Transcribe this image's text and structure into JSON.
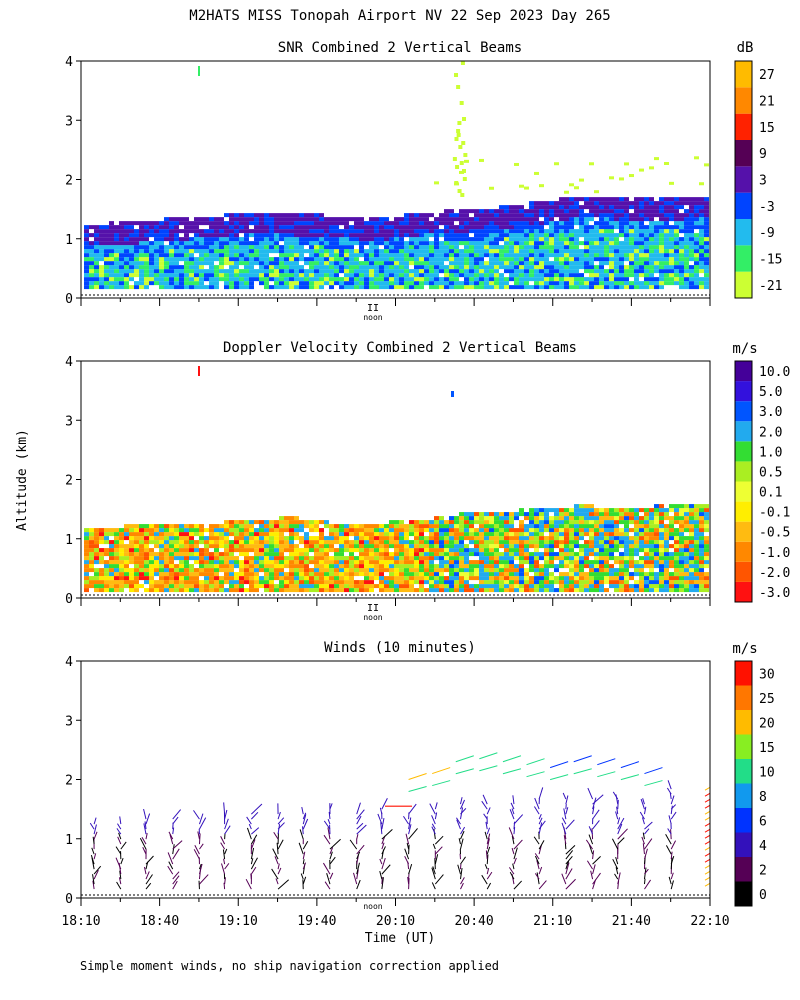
{
  "figure": {
    "title": "M2HATS MISS Tonopah Airport NV  22 Sep 2023 Day 265",
    "shared_ylabel": "Altitude (km)",
    "xlabel": "Time (UT)",
    "noon_label": "noon",
    "noon_mark": "II",
    "footnote": "Simple moment winds, no ship navigation correction applied"
  },
  "colors": {
    "snr": [
      "#ccff33",
      "#33ee66",
      "#22bbee",
      "#0044ff",
      "#5511aa",
      "#550055",
      "#ff2200",
      "#ff8800",
      "#ffbb00"
    ],
    "vel": [
      "#ff1111",
      "#ff5500",
      "#ff8800",
      "#ffbb11",
      "#ffee00",
      "#eeff33",
      "#aaee22",
      "#33dd33",
      "#22aaee",
      "#0055ff",
      "#3311dd",
      "#440099",
      "#330033"
    ],
    "wind": [
      "#000000",
      "#550055",
      "#3311bb",
      "#0033ff",
      "#1199ee",
      "#22dd88",
      "#88ee22",
      "#ffbb00",
      "#ff7700",
      "#ff1100"
    ]
  },
  "chart_data": [
    {
      "type": "heatmap",
      "title": "SNR Combined 2 Vertical Beams",
      "ylabel": "Altitude (km)",
      "xlabel": "Time (UT)",
      "xlim": [
        18.1667,
        22.1667
      ],
      "ylim": [
        0,
        4
      ],
      "yticks": [
        "0",
        "1",
        "2",
        "3",
        "4"
      ],
      "colorbar_units": "dB",
      "colorbar_labels": [
        "-21",
        "-15",
        "-9",
        "-3",
        "3",
        "9",
        "15",
        "21",
        "27"
      ],
      "boundary_layer_top_km": [
        1.1,
        1.15,
        1.2,
        1.25,
        1.3,
        1.3,
        1.25,
        1.2,
        1.3,
        1.35,
        1.4,
        1.5,
        1.6,
        1.55,
        1.55,
        1.6
      ]
    },
    {
      "type": "heatmap",
      "title": "Doppler Velocity Combined 2 Vertical Beams",
      "ylabel": "Altitude (km)",
      "xlabel": "Time (UT)",
      "xlim": [
        18.1667,
        22.1667
      ],
      "ylim": [
        0,
        4
      ],
      "yticks": [
        "0",
        "1",
        "2",
        "3",
        "4"
      ],
      "colorbar_units": "m/s",
      "colorbar_labels": [
        "-3.0",
        "-2.0",
        "-1.0",
        "-0.5",
        "-0.1",
        "0.1",
        "0.5",
        "1.0",
        "2.0",
        "3.0",
        "5.0",
        "10.0"
      ],
      "data_top_km": [
        1.2,
        1.25,
        1.3,
        1.3,
        1.35,
        1.4,
        1.3,
        1.3,
        1.35,
        1.45,
        1.5,
        1.55,
        1.6,
        1.55,
        1.6,
        1.6
      ]
    },
    {
      "type": "scatter",
      "title": "Winds (10 minutes)",
      "ylabel": "Altitude (km)",
      "xlabel": "Time (UT)",
      "xlim": [
        18.1667,
        22.1667
      ],
      "ylim": [
        0,
        4
      ],
      "yticks": [
        "0",
        "1",
        "2",
        "3",
        "4"
      ],
      "xticks": [
        "18:10",
        "18:40",
        "19:10",
        "19:40",
        "20:10",
        "20:40",
        "21:10",
        "21:40",
        "22:10"
      ],
      "colorbar_units": "m/s",
      "colorbar_labels": [
        "0",
        "2",
        "4",
        "6",
        "8",
        "10",
        "15",
        "20",
        "25",
        "30"
      ],
      "profile_times_hr": [
        18.25,
        18.42,
        18.58,
        18.75,
        18.92,
        19.08,
        19.25,
        19.42,
        19.58,
        19.75,
        19.92,
        20.08,
        20.25,
        20.42,
        20.58,
        20.75,
        20.92,
        21.08,
        21.25,
        21.42,
        21.58,
        21.75,
        21.92
      ],
      "profile_top_km": [
        1.3,
        1.3,
        1.35,
        1.4,
        1.4,
        1.45,
        1.5,
        1.5,
        1.45,
        1.55,
        1.5,
        1.55,
        1.5,
        1.55,
        1.6,
        1.65,
        1.6,
        1.7,
        1.7,
        1.75,
        1.7,
        1.6,
        1.9
      ],
      "upper_wind_heights_km": [
        2.0,
        2.1,
        2.3,
        2.35,
        2.3,
        2.25,
        2.2,
        2.3,
        2.25,
        2.2,
        2.1
      ]
    }
  ]
}
